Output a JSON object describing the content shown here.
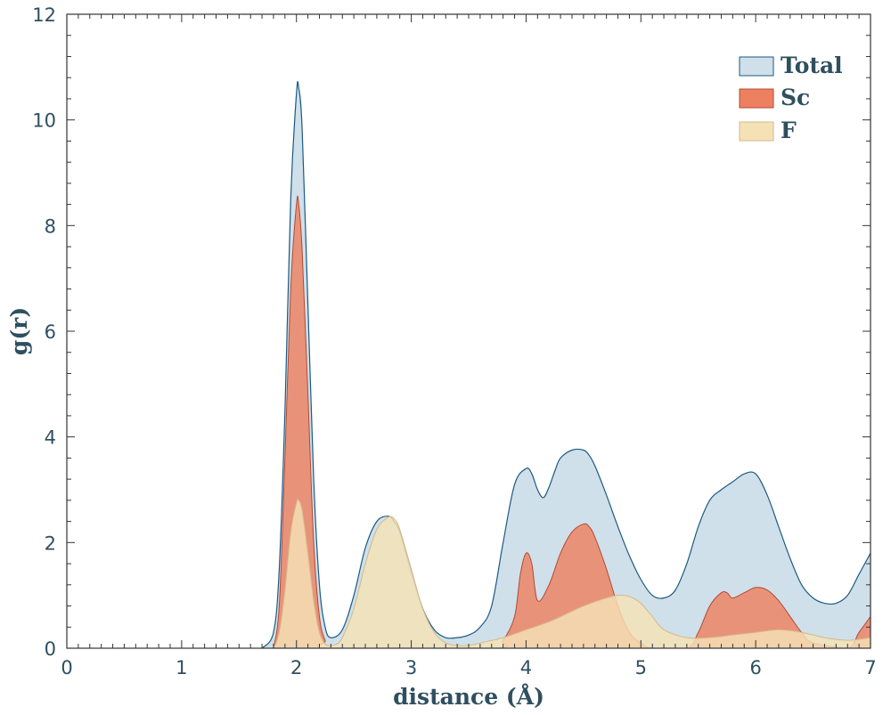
{
  "chart_data": {
    "type": "area",
    "title": "",
    "xlabel": "distance (Å)",
    "ylabel": "g(r)",
    "xlim": [
      0,
      7
    ],
    "ylim": [
      0,
      12
    ],
    "xticks": [
      0,
      1,
      2,
      3,
      4,
      5,
      6,
      7
    ],
    "xtick_labels": [
      "0",
      "1",
      "2",
      "3",
      "4",
      "5",
      "6",
      "7"
    ],
    "yticks": [
      0,
      2,
      4,
      6,
      8,
      10,
      12
    ],
    "ytick_labels": [
      "0",
      "2",
      "4",
      "6",
      "8",
      "10",
      "12"
    ],
    "grid": false,
    "legend_position": "top-right",
    "series": [
      {
        "name": "Total",
        "color": "#cfe0ea",
        "edge": "#1c5a82",
        "x": [
          1.7,
          1.8,
          1.85,
          1.9,
          1.95,
          2.0,
          2.02,
          2.05,
          2.1,
          2.15,
          2.2,
          2.25,
          2.3,
          2.4,
          2.5,
          2.6,
          2.7,
          2.8,
          2.85,
          2.9,
          3.0,
          3.1,
          3.2,
          3.3,
          3.4,
          3.5,
          3.6,
          3.7,
          3.8,
          3.9,
          4.0,
          4.05,
          4.1,
          4.15,
          4.2,
          4.25,
          4.3,
          4.4,
          4.5,
          4.55,
          4.6,
          4.7,
          4.8,
          4.9,
          5.0,
          5.1,
          5.2,
          5.3,
          5.4,
          5.5,
          5.6,
          5.7,
          5.8,
          5.9,
          6.0,
          6.1,
          6.2,
          6.3,
          6.4,
          6.5,
          6.6,
          6.7,
          6.8,
          6.9,
          7.0
        ],
        "values": [
          0.0,
          0.3,
          1.5,
          4.5,
          8.5,
          10.5,
          10.6,
          9.8,
          6.5,
          3.2,
          1.2,
          0.4,
          0.2,
          0.35,
          1.0,
          1.9,
          2.4,
          2.5,
          2.4,
          2.2,
          1.45,
          0.75,
          0.35,
          0.2,
          0.2,
          0.25,
          0.4,
          0.8,
          2.0,
          3.1,
          3.4,
          3.3,
          3.0,
          2.85,
          3.05,
          3.35,
          3.6,
          3.75,
          3.75,
          3.65,
          3.45,
          2.9,
          2.3,
          1.75,
          1.3,
          1.0,
          0.95,
          1.1,
          1.6,
          2.3,
          2.8,
          3.0,
          3.15,
          3.3,
          3.3,
          2.9,
          2.3,
          1.7,
          1.2,
          0.95,
          0.85,
          0.85,
          1.0,
          1.4,
          1.8
        ]
      },
      {
        "name": "Sc",
        "color": "#ee8062",
        "edge": "#b24a33",
        "x": [
          1.8,
          1.85,
          1.9,
          1.95,
          2.0,
          2.02,
          2.05,
          2.1,
          2.15,
          2.2,
          2.25,
          2.3,
          3.7,
          3.8,
          3.9,
          3.95,
          4.0,
          4.05,
          4.1,
          4.2,
          4.3,
          4.4,
          4.5,
          4.55,
          4.6,
          4.7,
          4.8,
          4.9,
          5.0,
          5.1,
          5.4,
          5.5,
          5.6,
          5.7,
          5.75,
          5.8,
          5.9,
          6.0,
          6.1,
          6.2,
          6.3,
          6.4,
          6.5,
          6.8,
          6.9,
          7.0
        ],
        "values": [
          0.0,
          0.8,
          3.6,
          6.8,
          8.4,
          8.4,
          7.5,
          4.8,
          2.0,
          0.6,
          0.15,
          0.0,
          0.0,
          0.15,
          0.6,
          1.4,
          1.8,
          1.6,
          0.9,
          1.2,
          1.8,
          2.2,
          2.35,
          2.3,
          2.1,
          1.5,
          0.8,
          0.3,
          0.1,
          0.0,
          0.0,
          0.3,
          0.8,
          1.05,
          1.05,
          0.95,
          1.05,
          1.15,
          1.1,
          0.9,
          0.6,
          0.3,
          0.1,
          0.0,
          0.3,
          0.6
        ]
      },
      {
        "name": "F",
        "color": "#f4e2b6",
        "edge": "#d6b889",
        "x": [
          1.8,
          1.85,
          1.9,
          1.95,
          2.0,
          2.02,
          2.05,
          2.1,
          2.15,
          2.2,
          2.25,
          2.3,
          2.35,
          2.4,
          2.5,
          2.6,
          2.7,
          2.8,
          2.85,
          2.9,
          3.0,
          3.1,
          3.2,
          3.3,
          3.4,
          3.5,
          3.6,
          3.8,
          4.0,
          4.2,
          4.4,
          4.5,
          4.6,
          4.7,
          4.8,
          4.9,
          5.0,
          5.1,
          5.2,
          5.4,
          5.6,
          5.8,
          6.0,
          6.2,
          6.4,
          6.6,
          6.8,
          7.0
        ],
        "values": [
          0.0,
          0.3,
          1.1,
          2.2,
          2.75,
          2.8,
          2.6,
          1.8,
          0.9,
          0.3,
          0.08,
          0.05,
          0.08,
          0.2,
          0.75,
          1.6,
          2.25,
          2.48,
          2.45,
          2.25,
          1.5,
          0.75,
          0.3,
          0.1,
          0.05,
          0.05,
          0.1,
          0.2,
          0.35,
          0.5,
          0.7,
          0.8,
          0.88,
          0.95,
          1.0,
          0.98,
          0.85,
          0.6,
          0.35,
          0.2,
          0.2,
          0.25,
          0.3,
          0.35,
          0.3,
          0.2,
          0.15,
          0.2
        ]
      }
    ]
  }
}
